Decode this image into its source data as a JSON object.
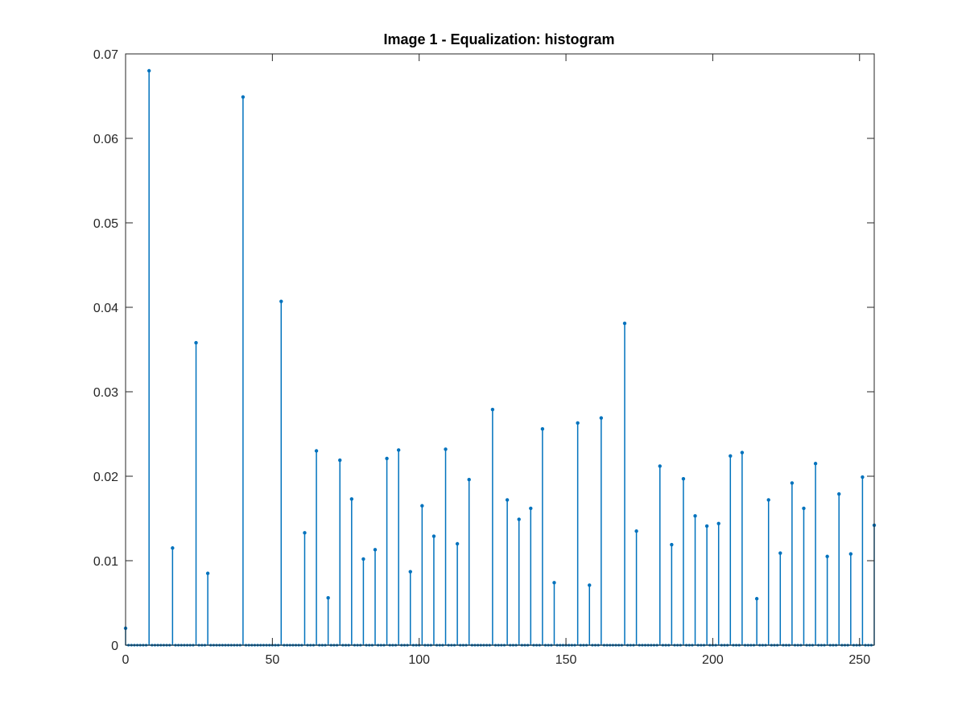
{
  "chart_data": {
    "type": "stem",
    "title": "Image 1 - Equalization: histogram",
    "xlabel": "",
    "ylabel": "",
    "xlim": [
      0,
      255
    ],
    "ylim": [
      0,
      0.07
    ],
    "xticks": [
      "0",
      "50",
      "100",
      "150",
      "200",
      "250"
    ],
    "yticks": [
      "0",
      "0.01",
      "0.02",
      "0.03",
      "0.04",
      "0.05",
      "0.06",
      "0.07"
    ],
    "grid": false,
    "series_color": "#0072bd",
    "n_bins": 256,
    "x": [
      0,
      8,
      16,
      24,
      28,
      40,
      53,
      61,
      65,
      69,
      73,
      77,
      81,
      85,
      89,
      93,
      97,
      101,
      105,
      109,
      113,
      117,
      125,
      130,
      134,
      138,
      142,
      146,
      154,
      158,
      162,
      170,
      174,
      182,
      186,
      190,
      194,
      198,
      202,
      206,
      210,
      215,
      219,
      223,
      227,
      231,
      235,
      239,
      243,
      247,
      251,
      255
    ],
    "values": [
      0.002,
      0.068,
      0.0115,
      0.0358,
      0.0085,
      0.0649,
      0.0407,
      0.0133,
      0.023,
      0.0056,
      0.0219,
      0.0173,
      0.0102,
      0.0113,
      0.0221,
      0.0231,
      0.0087,
      0.0165,
      0.0129,
      0.0232,
      0.012,
      0.0196,
      0.0279,
      0.0172,
      0.0149,
      0.0162,
      0.0256,
      0.0074,
      0.0263,
      0.0071,
      0.0269,
      0.0381,
      0.0135,
      0.0212,
      0.0119,
      0.0197,
      0.0153,
      0.0141,
      0.0144,
      0.0224,
      0.0228,
      0.0055,
      0.0172,
      0.0109,
      0.0192,
      0.0162,
      0.0215,
      0.0105,
      0.0179,
      0.0108,
      0.0199,
      0.0142
    ]
  }
}
